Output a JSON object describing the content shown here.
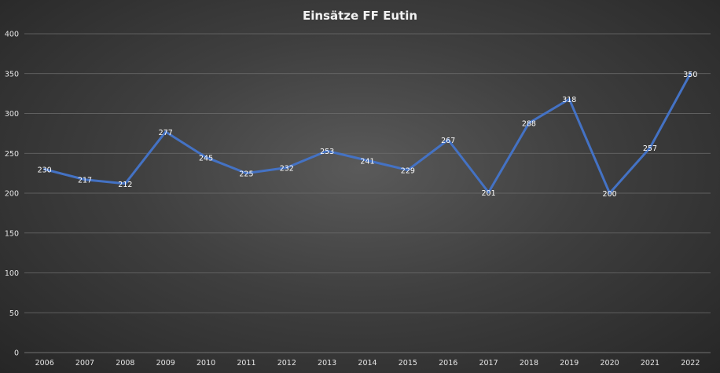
{
  "chart_data": {
    "type": "line",
    "title": "Einsätze  FF Eutin",
    "xlabel": "",
    "ylabel": "",
    "categories": [
      "2006",
      "2007",
      "2008",
      "2009",
      "2010",
      "2011",
      "2012",
      "2013",
      "2014",
      "2015",
      "2016",
      "2017",
      "2018",
      "2019",
      "2020",
      "2021",
      "2022"
    ],
    "series": [
      {
        "values": [
          230,
          217,
          212,
          277,
          245,
          225,
          232,
          253,
          241,
          229,
          267,
          201,
          288,
          318,
          200,
          257,
          350
        ]
      }
    ],
    "ylim": [
      0,
      400
    ],
    "yticks": [
      0,
      50,
      100,
      150,
      200,
      250,
      300,
      350,
      400
    ],
    "grid": true,
    "legend": "none",
    "colors": {
      "series": "#4472c4",
      "grid": "#6e6e6e",
      "text": "#e6e6e6"
    }
  }
}
